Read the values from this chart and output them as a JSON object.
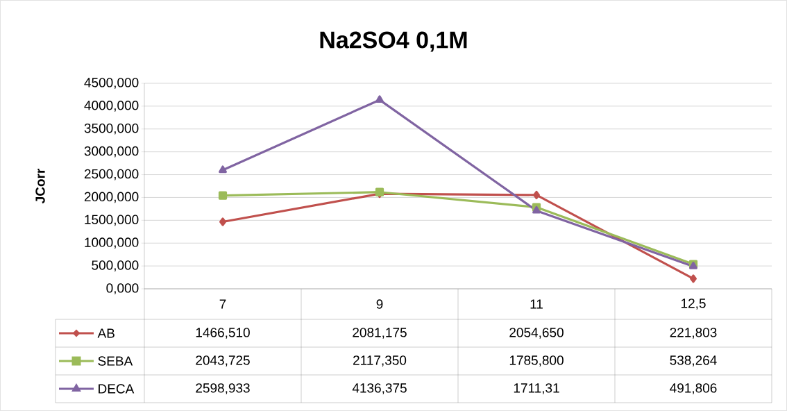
{
  "chart_data": {
    "type": "line",
    "title": "Na2SO4 0,1M",
    "ylabel": "JCorr",
    "categories": [
      "7",
      "9",
      "11",
      "12,5"
    ],
    "ylim": [
      0,
      4500
    ],
    "yticks": [
      {
        "value": 0,
        "label": "0,000"
      },
      {
        "value": 500,
        "label": "500,000"
      },
      {
        "value": 1000,
        "label": "1000,000"
      },
      {
        "value": 1500,
        "label": "1500,000"
      },
      {
        "value": 2000,
        "label": "2000,000"
      },
      {
        "value": 2500,
        "label": "2500,000"
      },
      {
        "value": 3000,
        "label": "3000,000"
      },
      {
        "value": 3500,
        "label": "3500,000"
      },
      {
        "value": 4000,
        "label": "4000,000"
      },
      {
        "value": 4500,
        "label": "4500,000"
      }
    ],
    "grid": "y",
    "legend": "bottom",
    "series": [
      {
        "name": "AB",
        "color": "#c0504d",
        "marker": "diamond",
        "values": [
          1466.51,
          2081.175,
          2054.65,
          221.803
        ],
        "value_labels": [
          "1466,510",
          "2081,175",
          "2054,650",
          "221,803"
        ]
      },
      {
        "name": "SEBA",
        "color": "#9bbb59",
        "marker": "square",
        "values": [
          2043.725,
          2117.35,
          1785.8,
          538.264
        ],
        "value_labels": [
          "2043,725",
          "2117,350",
          "1785,800",
          "538,264"
        ]
      },
      {
        "name": "DECA",
        "color": "#8064a2",
        "marker": "triangle",
        "values": [
          2598.933,
          4136.375,
          1711.31,
          491.806
        ],
        "value_labels": [
          "2598,933",
          "4136,375",
          "1711,31",
          "491,806"
        ]
      }
    ]
  }
}
